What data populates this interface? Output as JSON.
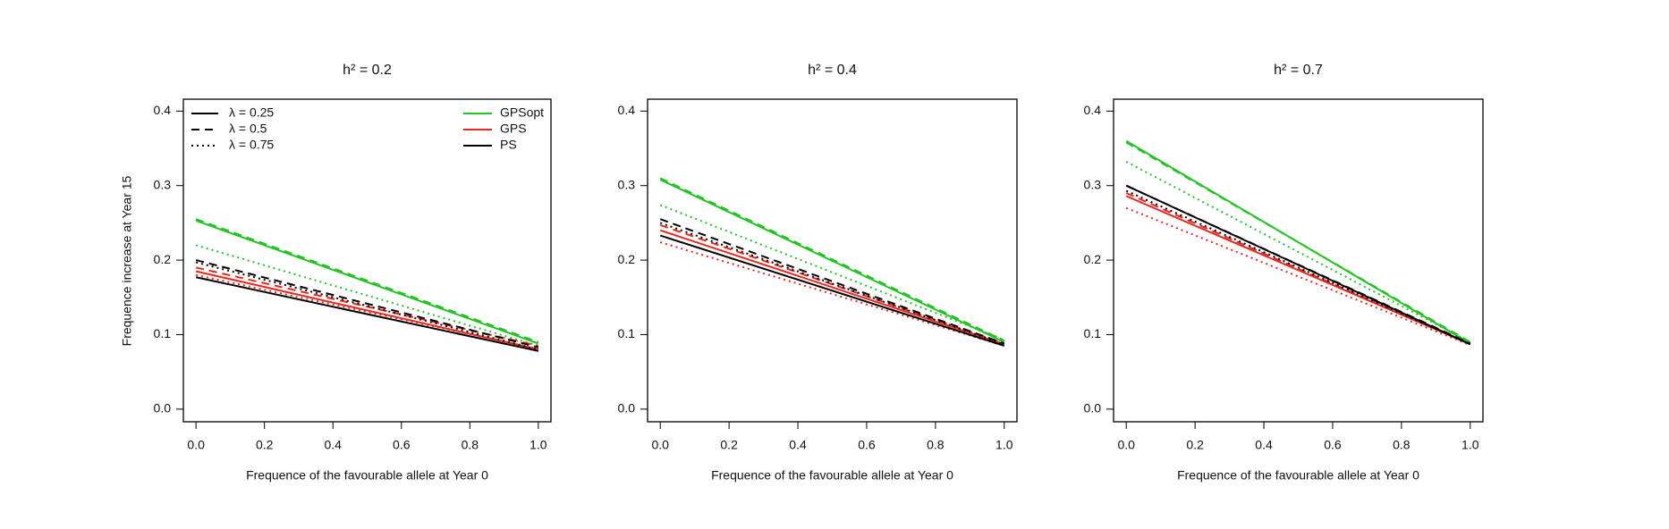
{
  "chart_data": [
    {
      "type": "line",
      "title": "h² = 0.2",
      "x_label": "Frequence of the favourable allele at Year 0",
      "y_label": "Frequence increase at Year 15",
      "x": [
        0,
        1
      ],
      "xlim": [
        -0.037,
        1.037
      ],
      "ylim": [
        -0.017,
        0.416
      ],
      "xticks": [
        {
          "value": 0,
          "label": "0.0"
        },
        0.2,
        0.4,
        0.6,
        0.8,
        {
          "value": 1,
          "label": "1.0"
        }
      ],
      "yticks": [
        {
          "value": 0,
          "label": "0.0"
        },
        0.1,
        0.2,
        0.3,
        0.4
      ],
      "legend_linestyles": [
        {
          "label": "λ = 0.25",
          "dash": "solid"
        },
        {
          "label": "λ = 0.5",
          "dash": "dashed"
        },
        {
          "label": "λ = 0.75",
          "dash": "dotted"
        }
      ],
      "legend_colors": [
        {
          "label": "GPSopt",
          "color": "#22c422"
        },
        {
          "label": "GPS",
          "color": "#e8281e"
        },
        {
          "label": "PS",
          "color": "#000000"
        }
      ],
      "series": [
        {
          "color": "#22c422",
          "dash": "solid",
          "values": [
            0.253,
            0.088
          ]
        },
        {
          "color": "#22c422",
          "dash": "dashed",
          "values": [
            0.255,
            0.09
          ]
        },
        {
          "color": "#22c422",
          "dash": "dotted",
          "values": [
            0.22,
            0.085
          ]
        },
        {
          "color": "#e8281e",
          "dash": "solid",
          "values": [
            0.185,
            0.08
          ]
        },
        {
          "color": "#e8281e",
          "dash": "dashed",
          "values": [
            0.19,
            0.085
          ]
        },
        {
          "color": "#e8281e",
          "dash": "dotted",
          "values": [
            0.18,
            0.081
          ]
        },
        {
          "color": "#000000",
          "dash": "solid",
          "values": [
            0.177,
            0.078
          ]
        },
        {
          "color": "#000000",
          "dash": "dashed",
          "values": [
            0.2,
            0.083
          ]
        },
        {
          "color": "#000000",
          "dash": "dotted",
          "values": [
            0.197,
            0.08
          ]
        }
      ]
    },
    {
      "type": "line",
      "title": "h² = 0.4",
      "x_label": "Frequence of the favourable allele at Year 0",
      "x": [
        0,
        1
      ],
      "xlim": [
        -0.037,
        1.037
      ],
      "ylim": [
        -0.017,
        0.416
      ],
      "xticks": [
        {
          "value": 0,
          "label": "0.0"
        },
        0.2,
        0.4,
        0.6,
        0.8,
        {
          "value": 1,
          "label": "1.0"
        }
      ],
      "yticks": [
        {
          "value": 0,
          "label": "0.0"
        },
        0.1,
        0.2,
        0.3,
        0.4
      ],
      "series": [
        {
          "color": "#22c422",
          "dash": "solid",
          "values": [
            0.308,
            0.09
          ]
        },
        {
          "color": "#22c422",
          "dash": "dashed",
          "values": [
            0.31,
            0.092
          ]
        },
        {
          "color": "#22c422",
          "dash": "dotted",
          "values": [
            0.274,
            0.093
          ]
        },
        {
          "color": "#e8281e",
          "dash": "solid",
          "values": [
            0.24,
            0.087
          ]
        },
        {
          "color": "#e8281e",
          "dash": "dashed",
          "values": [
            0.247,
            0.088
          ]
        },
        {
          "color": "#e8281e",
          "dash": "dotted",
          "values": [
            0.224,
            0.085
          ]
        },
        {
          "color": "#000000",
          "dash": "solid",
          "values": [
            0.233,
            0.085
          ]
        },
        {
          "color": "#000000",
          "dash": "dashed",
          "values": [
            0.255,
            0.088
          ]
        },
        {
          "color": "#000000",
          "dash": "dotted",
          "values": [
            0.25,
            0.087
          ]
        }
      ]
    },
    {
      "type": "line",
      "title": "h² = 0.7",
      "x_label": "Frequence of the favourable allele at Year 0",
      "x": [
        0,
        1
      ],
      "xlim": [
        -0.037,
        1.037
      ],
      "ylim": [
        -0.017,
        0.416
      ],
      "xticks": [
        {
          "value": 0,
          "label": "0.0"
        },
        0.2,
        0.4,
        0.6,
        0.8,
        {
          "value": 1,
          "label": "1.0"
        }
      ],
      "yticks": [
        {
          "value": 0,
          "label": "0.0"
        },
        0.1,
        0.2,
        0.3,
        0.4
      ],
      "series": [
        {
          "color": "#22c422",
          "dash": "solid",
          "values": [
            0.36,
            0.088
          ]
        },
        {
          "color": "#22c422",
          "dash": "dashed",
          "values": [
            0.358,
            0.09
          ]
        },
        {
          "color": "#22c422",
          "dash": "dotted",
          "values": [
            0.332,
            0.09
          ]
        },
        {
          "color": "#e8281e",
          "dash": "solid",
          "values": [
            0.286,
            0.087
          ]
        },
        {
          "color": "#e8281e",
          "dash": "dashed",
          "values": [
            0.29,
            0.087
          ]
        },
        {
          "color": "#e8281e",
          "dash": "dotted",
          "values": [
            0.27,
            0.086
          ]
        },
        {
          "color": "#000000",
          "dash": "solid",
          "values": [
            0.3,
            0.087
          ]
        },
        {
          "color": "#000000",
          "dash": "dashed",
          "values": [
            0.3,
            0.088
          ]
        },
        {
          "color": "#000000",
          "dash": "dotted",
          "values": [
            0.293,
            0.087
          ]
        }
      ]
    }
  ]
}
